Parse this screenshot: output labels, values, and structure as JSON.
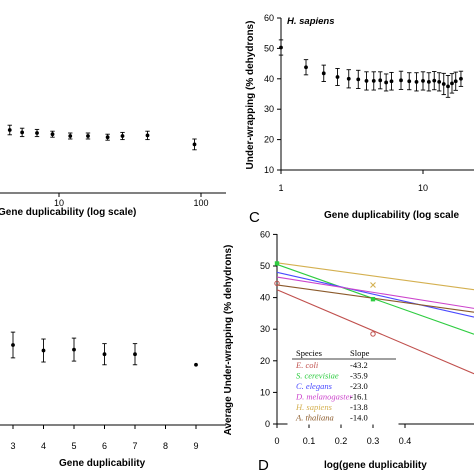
{
  "panels": {
    "A": {
      "xlabel": "Gene duplicability (log scale)",
      "xticks": [
        10,
        100
      ],
      "points": [
        {
          "x": 1.3,
          "y": 37.5,
          "err": 0.8
        },
        {
          "x": 1.8,
          "y": 36.3,
          "err": 0.8
        },
        {
          "x": 2.3,
          "y": 35.8,
          "err": 0.8
        },
        {
          "x": 3.0,
          "y": 35.4,
          "err": 1.0
        },
        {
          "x": 3.6,
          "y": 35.1,
          "err": 0.9
        },
        {
          "x": 4.5,
          "y": 35.0,
          "err": 0.8
        },
        {
          "x": 5.5,
          "y": 34.6,
          "err": 0.7
        },
        {
          "x": 7.0,
          "y": 34.5,
          "err": 0.6
        },
        {
          "x": 9.0,
          "y": 34.3,
          "err": 0.5
        },
        {
          "x": 12.0,
          "y": 34.0,
          "err": 0.5
        },
        {
          "x": 16.0,
          "y": 34.0,
          "err": 0.5
        },
        {
          "x": 22.0,
          "y": 33.8,
          "err": 0.5
        },
        {
          "x": 28.0,
          "y": 34.0,
          "err": 0.6
        },
        {
          "x": 42.0,
          "y": 34.1,
          "err": 0.7
        },
        {
          "x": 90.0,
          "y": 32.6,
          "err": 0.9
        }
      ]
    },
    "C": {
      "label": "C",
      "title": "H. sapiens",
      "ylabel": "Under-wrapping (% dehydrons)",
      "xlabel": "Gene duplicability (log scale",
      "yticks": [
        10,
        20,
        30,
        40,
        50,
        60
      ],
      "xticks": [
        1,
        10
      ],
      "points": [
        {
          "x": 1.0,
          "y": 50.3,
          "err": 2.5
        },
        {
          "x": 1.5,
          "y": 43.8,
          "err": 2.5
        },
        {
          "x": 2.0,
          "y": 41.8,
          "err": 2.7
        },
        {
          "x": 2.5,
          "y": 40.6,
          "err": 2.8
        },
        {
          "x": 3.0,
          "y": 40.0,
          "err": 3.0
        },
        {
          "x": 3.5,
          "y": 39.8,
          "err": 3.0
        },
        {
          "x": 4.0,
          "y": 39.3,
          "err": 3.0
        },
        {
          "x": 4.5,
          "y": 39.3,
          "err": 3.0
        },
        {
          "x": 5.0,
          "y": 39.5,
          "err": 2.8
        },
        {
          "x": 5.5,
          "y": 38.8,
          "err": 2.8
        },
        {
          "x": 6.0,
          "y": 39.2,
          "err": 2.9
        },
        {
          "x": 7.0,
          "y": 39.5,
          "err": 3.0
        },
        {
          "x": 8.0,
          "y": 39.2,
          "err": 2.8
        },
        {
          "x": 9.0,
          "y": 39.0,
          "err": 3.0
        },
        {
          "x": 10.0,
          "y": 39.3,
          "err": 3.0
        },
        {
          "x": 11.0,
          "y": 39.0,
          "err": 3.0
        },
        {
          "x": 12.0,
          "y": 39.4,
          "err": 3.0
        },
        {
          "x": 13.0,
          "y": 39.0,
          "err": 3.0
        },
        {
          "x": 14.0,
          "y": 38.3,
          "err": 3.5
        },
        {
          "x": 15.0,
          "y": 37.5,
          "err": 3.6
        },
        {
          "x": 16.0,
          "y": 38.5,
          "err": 3.2
        },
        {
          "x": 17.0,
          "y": 39.2,
          "err": 3.0
        },
        {
          "x": 18.5,
          "y": 40.0,
          "err": 2.5
        }
      ]
    },
    "B": {
      "xlabel": "Gene duplicability",
      "xticks": [
        3,
        4,
        5,
        6,
        7,
        8,
        9
      ],
      "points": [
        {
          "x": 3,
          "y": 37.5,
          "err": 2.8
        },
        {
          "x": 4,
          "y": 36.3,
          "err": 2.5
        },
        {
          "x": 5,
          "y": 36.5,
          "err": 2.5
        },
        {
          "x": 6,
          "y": 35.5,
          "err": 2.3
        },
        {
          "x": 7,
          "y": 35.5,
          "err": 2.3
        },
        {
          "x": 9,
          "y": 33.2,
          "err": 0
        }
      ]
    },
    "D": {
      "label": "D",
      "ylabel": "Average Under-wrapping (% dehydrons)",
      "xlabel": "log(gene duplicability",
      "yticks": [
        0,
        10,
        20,
        30,
        40,
        50,
        60
      ],
      "xticks": [
        "0",
        "0.1",
        "0.2",
        "0.3",
        "0.4"
      ],
      "legend_header": [
        "Species",
        "Slope"
      ],
      "species": [
        {
          "name": "E. coli",
          "slope": "-43.2",
          "color": "#c0504d",
          "y0": 42.5
        },
        {
          "name": "S. cerevisiae",
          "slope": "-35.9",
          "color": "#2ecc40",
          "y0": 50.5
        },
        {
          "name": "C. elegans",
          "slope": "-23.0",
          "color": "#4a4aff",
          "y0": 48.0
        },
        {
          "name": "D. melanogaster",
          "slope": "-16.1",
          "color": "#cc44cc",
          "y0": 46.5
        },
        {
          "name": "H. sapiens",
          "slope": "-13.8",
          "color": "#d4b050",
          "y0": 51.0
        },
        {
          "name": "A. thaliana",
          "slope": "-14.0",
          "color": "#8b5a2b",
          "y0": 44.0
        }
      ],
      "markers": [
        {
          "species": "E. coli",
          "x": 0.0,
          "y": 44.5,
          "symbol": "o"
        },
        {
          "species": "E. coli",
          "x": 0.3,
          "y": 28.5,
          "symbol": "o"
        },
        {
          "species": "S. cerevisiae",
          "x": 0.0,
          "y": 50.8,
          "symbol": "s"
        },
        {
          "species": "S. cerevisiae",
          "x": 0.3,
          "y": 39.5,
          "symbol": "s"
        },
        {
          "species": "H. sapiens",
          "x": 0.3,
          "y": 44.0,
          "symbol": "x"
        }
      ]
    }
  },
  "chart_data": [
    {
      "type": "scatter",
      "panel": "A",
      "xlabel": "Gene duplicability (log scale)",
      "xscale": "log",
      "x": [
        1.3,
        1.8,
        2.3,
        3.0,
        3.6,
        4.5,
        5.5,
        7.0,
        9.0,
        12.0,
        16.0,
        22.0,
        28.0,
        42.0,
        90.0
      ],
      "y": [
        37.5,
        36.3,
        35.8,
        35.4,
        35.1,
        35.0,
        34.6,
        34.5,
        34.3,
        34.0,
        34.0,
        33.8,
        34.0,
        34.1,
        32.6
      ]
    },
    {
      "type": "scatter",
      "panel": "C",
      "title": "H. sapiens",
      "ylabel": "Under-wrapping (% dehydrons)",
      "xlabel": "Gene duplicability (log scale",
      "xscale": "log",
      "ylim": [
        10,
        60
      ],
      "x": [
        1.0,
        1.5,
        2.0,
        2.5,
        3.0,
        3.5,
        4.0,
        4.5,
        5.0,
        5.5,
        6.0,
        7.0,
        8.0,
        9.0,
        10.0,
        11.0,
        12.0,
        13.0,
        14.0,
        15.0,
        16.0,
        17.0,
        18.5
      ],
      "y": [
        50.3,
        43.8,
        41.8,
        40.6,
        40.0,
        39.8,
        39.3,
        39.3,
        39.5,
        38.8,
        39.2,
        39.5,
        39.2,
        39.0,
        39.3,
        39.0,
        39.4,
        39.0,
        38.3,
        37.5,
        38.5,
        39.2,
        40.0
      ]
    },
    {
      "type": "scatter",
      "panel": "B",
      "xlabel": "Gene duplicability",
      "x": [
        3,
        4,
        5,
        6,
        7,
        9
      ],
      "y": [
        37.5,
        36.3,
        36.5,
        35.5,
        35.5,
        33.2
      ]
    },
    {
      "type": "line",
      "panel": "D",
      "ylabel": "Average Under-wrapping (% dehydrons)",
      "xlabel": "log(gene duplicability",
      "ylim": [
        0,
        60
      ],
      "series": [
        {
          "name": "E. coli",
          "slope": -43.2,
          "intercept": 42.5
        },
        {
          "name": "S. cerevisiae",
          "slope": -35.9,
          "intercept": 50.5
        },
        {
          "name": "C. elegans",
          "slope": -23.0,
          "intercept": 48.0
        },
        {
          "name": "D. melanogaster",
          "slope": -16.1,
          "intercept": 46.5
        },
        {
          "name": "H. sapiens",
          "slope": -13.8,
          "intercept": 51.0
        },
        {
          "name": "A. thaliana",
          "slope": -14.0,
          "intercept": 44.0
        }
      ]
    }
  ]
}
